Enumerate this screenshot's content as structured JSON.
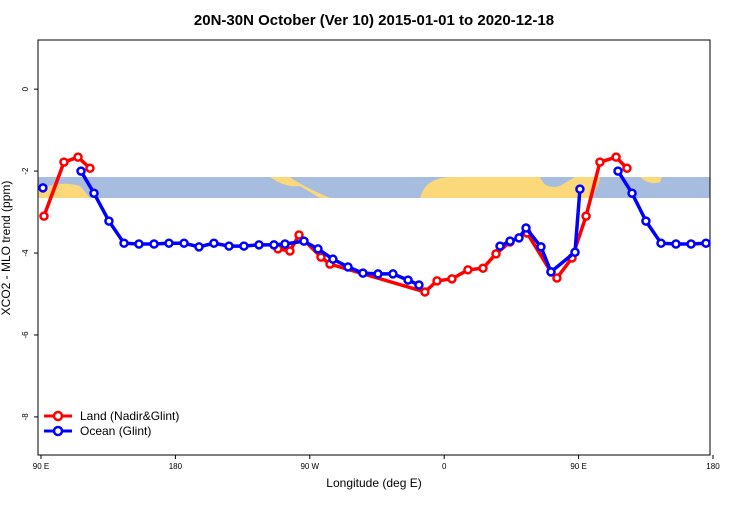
{
  "chart_data": {
    "type": "line",
    "title": "20N-30N October (Ver 10)   2015-01-01 to 2020-12-18",
    "xlabel": "Longitude (deg E)",
    "ylabel": "XCO2 - MLO trend (ppm)",
    "xlim": [
      88,
      538
    ],
    "ylim": [
      -8.93,
      1.2
    ],
    "xticks": [
      {
        "value": 90,
        "label": "90 E"
      },
      {
        "value": 180,
        "label": "180"
      },
      {
        "value": 270,
        "label": "90 W"
      },
      {
        "value": 360,
        "label": "0"
      },
      {
        "value": 450,
        "label": "90 E"
      },
      {
        "value": 540,
        "label": "180"
      }
    ],
    "yticks": [
      0,
      -2,
      -4,
      -6,
      -8
    ],
    "legend": "bottom-left",
    "series": [
      {
        "name": "Land (Nadir&Glint)",
        "color": "#ff0000",
        "x": [
          92.0,
          105.4,
          114.8,
          122.8,
          200,
          248.7,
          256.7,
          262.8,
          277.5,
          283.5,
          347.1,
          355.2,
          365.2,
          375.9,
          386.0,
          394.7,
          404.1,
          415.5,
          431.5,
          435.5,
          445.6,
          455.0,
          464.3,
          475.1,
          482.4
        ],
        "values": [
          -3.1,
          -1.78,
          -1.66,
          -1.93,
          null,
          -3.9,
          -3.95,
          -3.56,
          -4.1,
          -4.27,
          -4.95,
          -4.68,
          -4.63,
          -4.41,
          -4.37,
          -4.02,
          -3.73,
          -3.51,
          -4.46,
          -4.61,
          -4.12,
          -3.1,
          -1.78,
          -1.66,
          -1.93
        ]
      },
      {
        "name": "Ocean (Glint)",
        "color": "#0000ff",
        "x": [
          91.3,
          100,
          116.8,
          125.5,
          135.5,
          145.6,
          155.6,
          165.7,
          175.7,
          185.8,
          195.8,
          205.8,
          215.9,
          225.9,
          236.0,
          246.0,
          253.4,
          266.1,
          275.5,
          285.5,
          295.6,
          305.6,
          315.7,
          325.7,
          335.8,
          343.1,
          370,
          397.4,
          404.1,
          410.1,
          414.8,
          424.8,
          431.5,
          447.6,
          450.9,
          465,
          476.4,
          485.8,
          495.1,
          505.2,
          515.2,
          525.3,
          535.3
        ],
        "values": [
          -2.41,
          null,
          -2.0,
          -2.54,
          -3.22,
          -3.76,
          -3.78,
          -3.78,
          -3.76,
          -3.76,
          -3.85,
          -3.76,
          -3.83,
          -3.83,
          -3.8,
          -3.8,
          -3.78,
          -3.71,
          -3.9,
          -4.15,
          -4.34,
          -4.49,
          -4.51,
          -4.51,
          -4.66,
          -4.78,
          null,
          -3.83,
          -3.71,
          -3.63,
          -3.39,
          -3.85,
          -4.46,
          -3.98,
          -2.44,
          null,
          -2.0,
          -2.54,
          -3.22,
          -3.76,
          -3.78,
          -3.78,
          -3.76
        ]
      }
    ]
  }
}
